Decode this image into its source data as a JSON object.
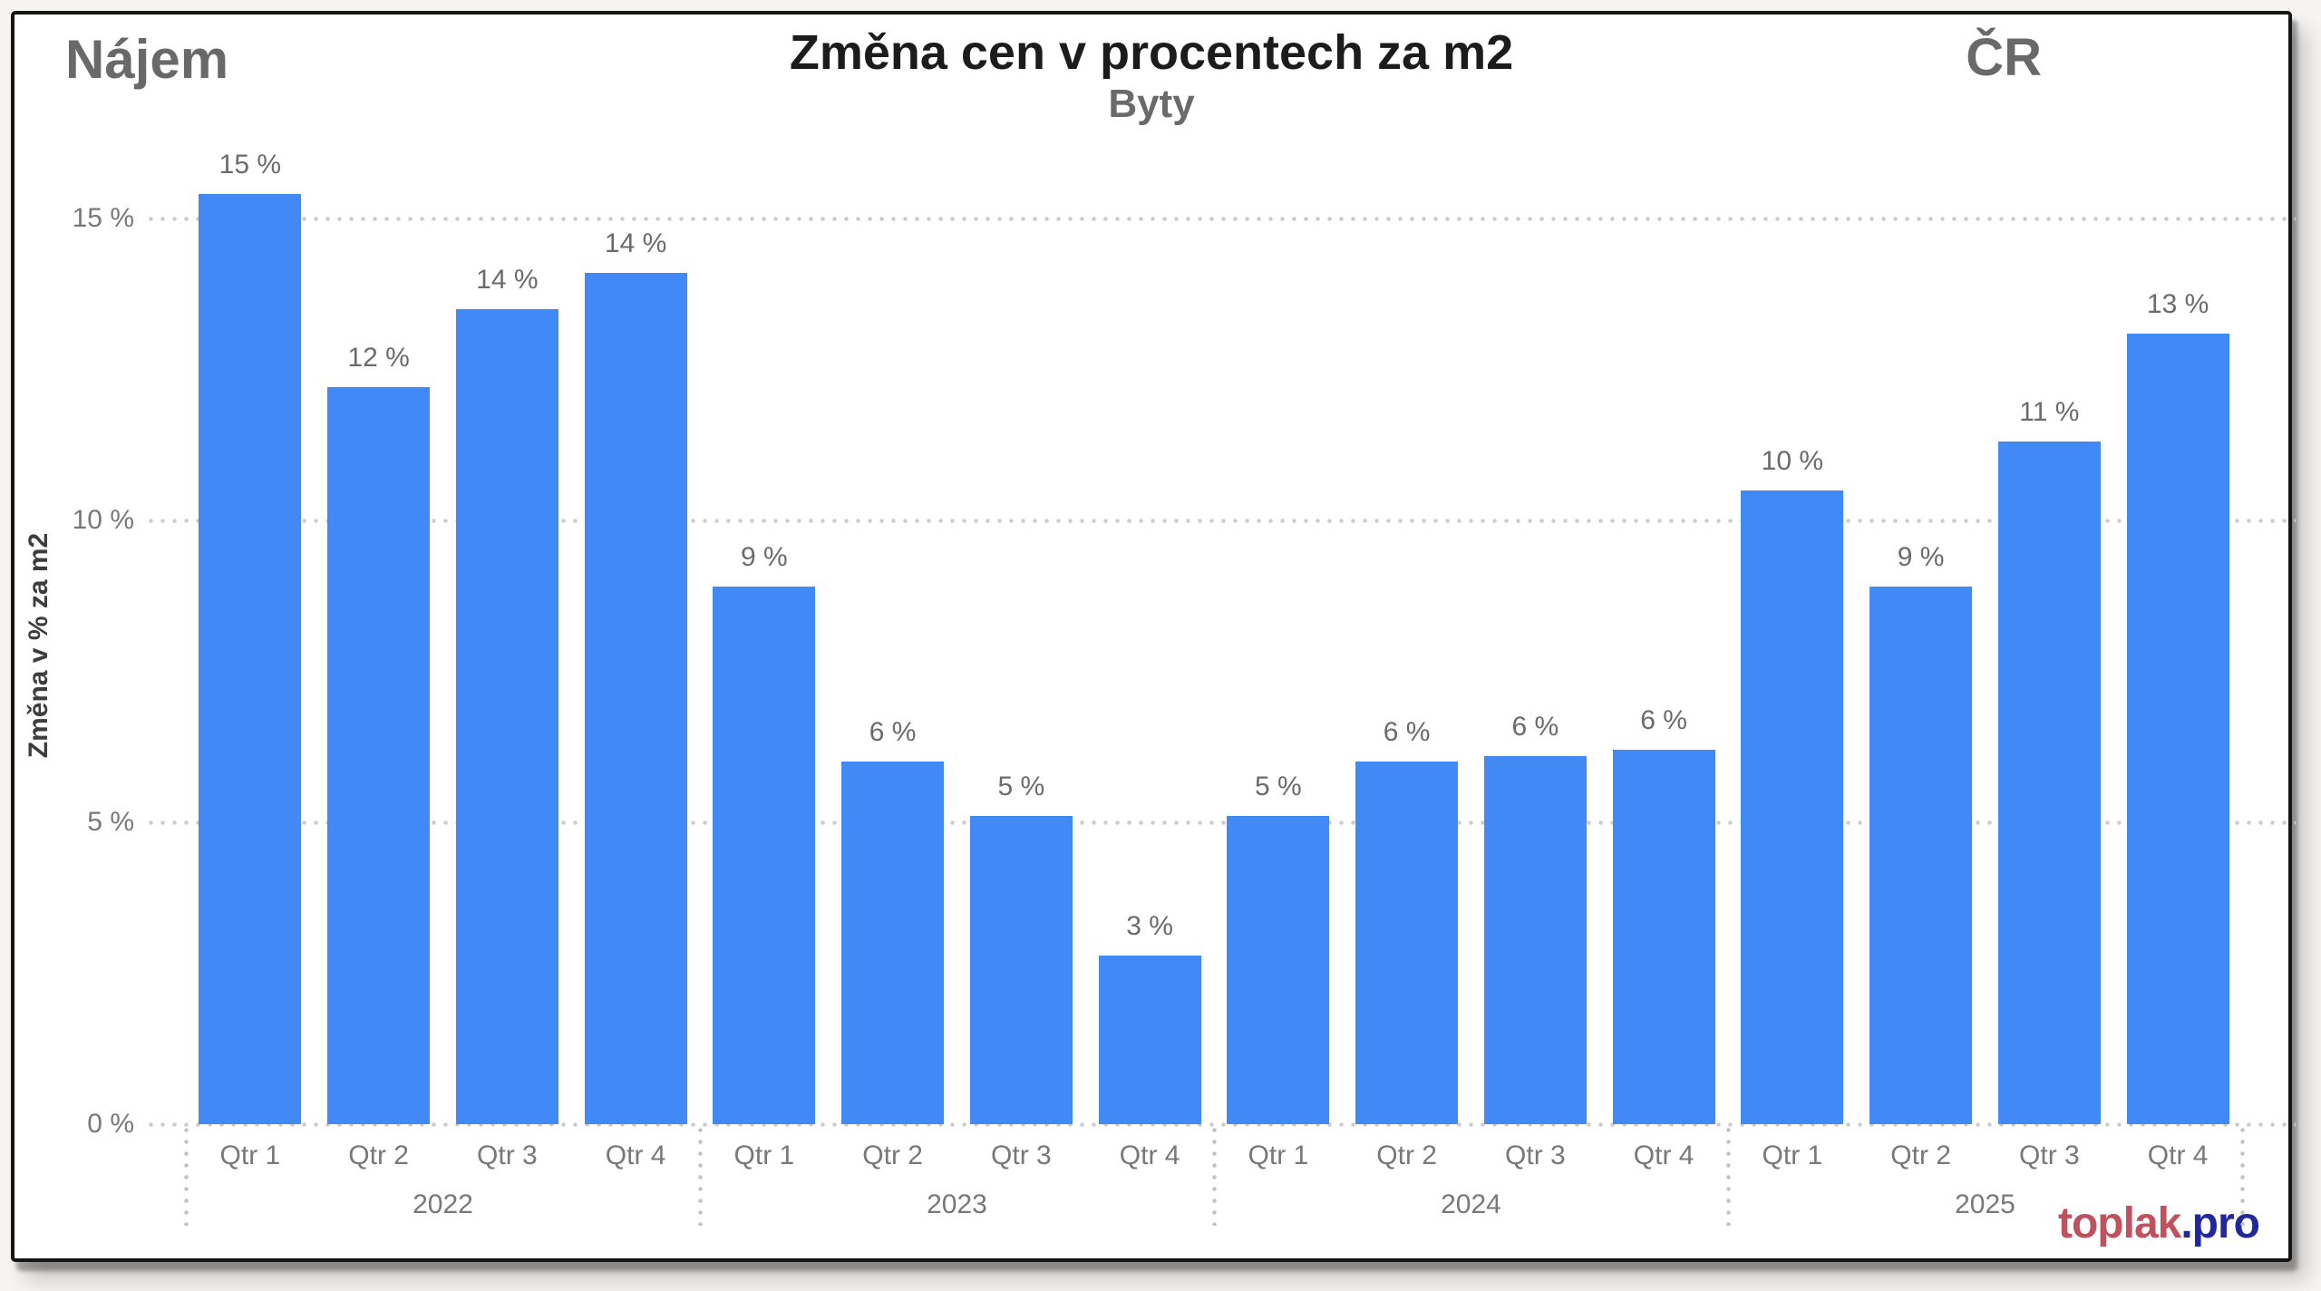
{
  "header": {
    "left_label": "Nájem",
    "title": "Změna cen v procentech za m2",
    "subtitle": "Byty",
    "right_label": "ČR"
  },
  "footer": {
    "brand_red": "toplak",
    "brand_blue": ".pro"
  },
  "colors": {
    "bar": "#4189f5",
    "brand_red": "#bf525c",
    "brand_blue": "#23279c",
    "grid_dots": "#cccccc",
    "frame_border": "#161616"
  },
  "chart_data": {
    "type": "bar",
    "title": "Změna cen v procentech za m2",
    "subtitle": "Byty",
    "xlabel": "",
    "ylabel": "Změna v % za m2",
    "ylim": [
      0,
      16.5
    ],
    "grid": "horizontal-dotted",
    "legend": "none",
    "bar_color": "#4189f5",
    "yticks": [
      {
        "value": 0,
        "label": "0 %"
      },
      {
        "value": 5,
        "label": "5 %"
      },
      {
        "value": 10,
        "label": "10 %"
      },
      {
        "value": 15,
        "label": "15 %"
      }
    ],
    "groups": [
      {
        "year": "2022",
        "quarters": [
          "Qtr 1",
          "Qtr 2",
          "Qtr 3",
          "Qtr 4"
        ],
        "values": [
          15.4,
          12.2,
          13.5,
          14.1
        ],
        "labels": [
          "15 %",
          "12 %",
          "14 %",
          "14 %"
        ]
      },
      {
        "year": "2023",
        "quarters": [
          "Qtr 1",
          "Qtr 2",
          "Qtr 3",
          "Qtr 4"
        ],
        "values": [
          8.9,
          6.0,
          5.1,
          2.8
        ],
        "labels": [
          "9 %",
          "6 %",
          "5 %",
          "3 %"
        ]
      },
      {
        "year": "2024",
        "quarters": [
          "Qtr 1",
          "Qtr 2",
          "Qtr 3",
          "Qtr 4"
        ],
        "values": [
          5.1,
          6.0,
          6.1,
          6.2
        ],
        "labels": [
          "5 %",
          "6 %",
          "6 %",
          "6 %"
        ]
      },
      {
        "year": "2025",
        "quarters": [
          "Qtr 1",
          "Qtr 2",
          "Qtr 3",
          "Qtr 4"
        ],
        "values": [
          10.5,
          8.9,
          11.3,
          13.1
        ],
        "labels": [
          "10 %",
          "9 %",
          "11 %",
          "13 %"
        ]
      }
    ]
  }
}
